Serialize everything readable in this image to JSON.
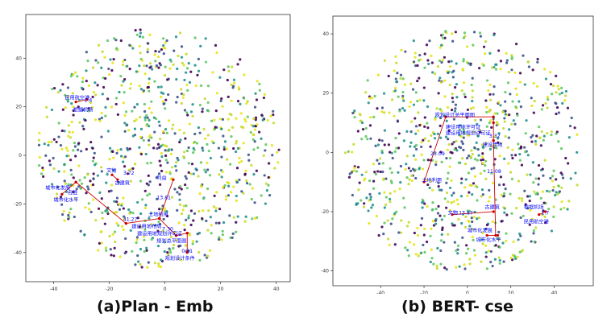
{
  "figure": {
    "caption_left": "(a)Plan - Emb",
    "caption_right": "(b) BERT- cse"
  },
  "colors": {
    "scatter_palette": [
      "#440154",
      "#3b528b",
      "#21918c",
      "#5ec962",
      "#c8d92c",
      "#e5e419"
    ],
    "annotation_text": "#0000ff",
    "annotation_line": "#cc0000"
  },
  "chart_data": [
    {
      "type": "scatter",
      "title": "",
      "xlim": [
        -50,
        45
      ],
      "ylim": [
        -52,
        58
      ],
      "xticks": [
        -40,
        -20,
        0,
        20,
        40
      ],
      "yticks": [
        -40,
        -20,
        0,
        20,
        40
      ],
      "point_cloud": {
        "count": 900,
        "description_seed": 11
      },
      "annotations": [
        {
          "label": "民用航空港",
          "x": -36,
          "y": 23
        },
        {
          "label": "根据机场",
          "x": -33,
          "y": 18
        },
        {
          "label": "1.4",
          "x": -29,
          "y": 22
        },
        {
          "label": "文物",
          "x": -21,
          "y": -7
        },
        {
          "label": "3.72",
          "x": -15,
          "y": -8
        },
        {
          "label": "古建筑",
          "x": -18,
          "y": -12
        },
        {
          "label": "城市化发展",
          "x": -43,
          "y": -14
        },
        {
          "label": "城市化水平",
          "x": -40,
          "y": -19
        },
        {
          "label": "名胜",
          "x": -35,
          "y": -16
        },
        {
          "label": "利益",
          "x": -3,
          "y": -10
        },
        {
          "label": "13.81",
          "x": -3,
          "y": -18
        },
        {
          "label": "土地利用",
          "x": -6,
          "y": -25
        },
        {
          "label": "41.27",
          "x": -15,
          "y": -27
        },
        {
          "label": "建设用地布局",
          "x": -12,
          "y": -30
        },
        {
          "label": "7.30",
          "x": -1,
          "y": -31
        },
        {
          "label": "建设用地规划许可证",
          "x": -10,
          "y": -33
        },
        {
          "label": "规划总平面图",
          "x": -3,
          "y": -36
        },
        {
          "label": "0.11",
          "x": 6,
          "y": -40
        },
        {
          "label": "规划设计条件",
          "x": 0,
          "y": -43
        }
      ],
      "links": [
        {
          "from": [
            -32,
            22
          ],
          "to": [
            -28,
            23
          ]
        },
        {
          "from": [
            -19,
            -8
          ],
          "to": [
            -17,
            -10
          ]
        },
        {
          "from": [
            -37,
            -16
          ],
          "to": [
            -32,
            -11
          ]
        },
        {
          "from": [
            -32,
            -11
          ],
          "to": [
            -14,
            -28
          ]
        },
        {
          "from": [
            -14,
            -28
          ],
          "to": [
            -2,
            -26
          ]
        },
        {
          "from": [
            -2,
            -26
          ],
          "to": [
            3,
            -10
          ]
        },
        {
          "from": [
            -2,
            -26
          ],
          "to": [
            4,
            -33
          ]
        },
        {
          "from": [
            4,
            -33
          ],
          "to": [
            8,
            -32
          ]
        },
        {
          "from": [
            8,
            -32
          ],
          "to": [
            8,
            -40
          ]
        }
      ]
    },
    {
      "type": "scatter",
      "title": "",
      "xlim": [
        -62,
        58
      ],
      "ylim": [
        -45,
        46
      ],
      "xticks": [
        -40,
        -20,
        0,
        20,
        40
      ],
      "yticks": [
        -40,
        -20,
        0,
        20,
        40
      ],
      "point_cloud": {
        "count": 900,
        "description_seed": 29
      },
      "annotations": [
        {
          "label": "规划设计总平面图",
          "x": -15,
          "y": 12
        },
        {
          "label": "建设用地许可证",
          "x": -10,
          "y": 8
        },
        {
          "label": "建设用地规划许可证",
          "x": -10,
          "y": 6
        },
        {
          "label": "3.32",
          "x": 10,
          "y": 5
        },
        {
          "label": "建设用地",
          "x": 7,
          "y": 2
        },
        {
          "label": "23.09",
          "x": -17,
          "y": -1
        },
        {
          "label": "土地利用",
          "x": -21,
          "y": -10
        },
        {
          "label": "11.08",
          "x": 9,
          "y": -7
        },
        {
          "label": "文物",
          "x": -9,
          "y": -21
        },
        {
          "label": "13.87",
          "x": -4,
          "y": -21
        },
        {
          "label": "古建筑",
          "x": 8,
          "y": -19
        },
        {
          "label": "城市化发展",
          "x": 0,
          "y": -27
        },
        {
          "label": "城市化水平",
          "x": 4,
          "y": -30
        },
        {
          "label": "根据机场",
          "x": 26,
          "y": -19
        },
        {
          "label": "1.7",
          "x": 34,
          "y": -21
        },
        {
          "label": "民用航空港",
          "x": 26,
          "y": -24
        }
      ],
      "links": [
        {
          "from": [
            -20,
            -10
          ],
          "to": [
            -10,
            12
          ]
        },
        {
          "from": [
            -10,
            12
          ],
          "to": [
            12,
            12
          ]
        },
        {
          "from": [
            12,
            12
          ],
          "to": [
            12,
            10
          ]
        },
        {
          "from": [
            12,
            10
          ],
          "to": [
            12,
            4
          ]
        },
        {
          "from": [
            12,
            4
          ],
          "to": [
            13,
            -28
          ]
        },
        {
          "from": [
            -7,
            -21
          ],
          "to": [
            12,
            -20
          ]
        },
        {
          "from": [
            9,
            -28
          ],
          "to": [
            14,
            -28
          ]
        },
        {
          "from": [
            33,
            -21
          ],
          "to": [
            36,
            -20
          ]
        }
      ]
    }
  ]
}
